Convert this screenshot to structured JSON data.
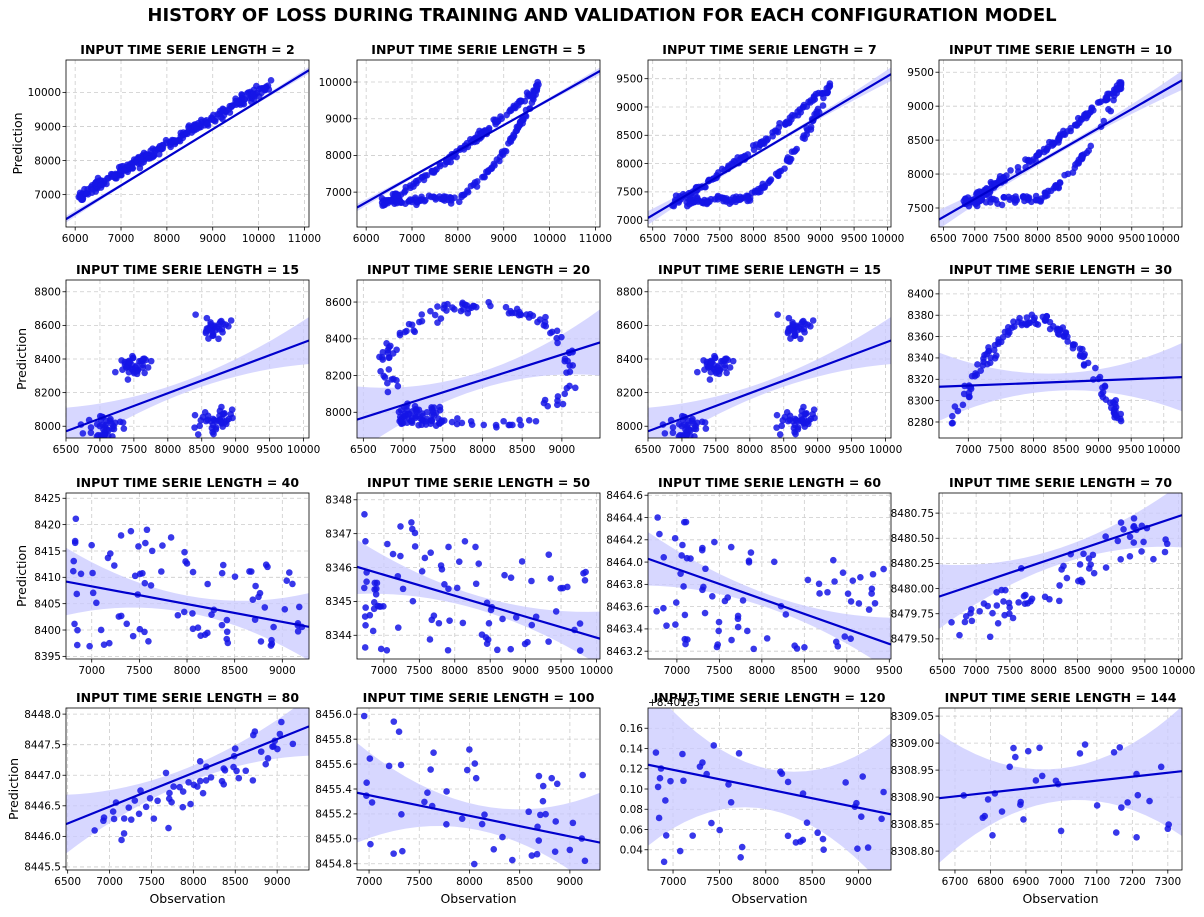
{
  "figure": {
    "title": "HISTORY OF LOSS DURING TRAINING AND VALIDATION FOR EACH CONFIGURATION MODEL"
  },
  "colors": {
    "points": "#1515e6",
    "line": "#0000cc",
    "band": "#c9c9ff",
    "grid": "#cccccc"
  },
  "chart_data": [
    {
      "type": "scatter",
      "title": "INPUT TIME SERIE LENGTH = 2",
      "xlabel": "",
      "ylabel": "Prediction",
      "xlim": [
        5800,
        11100
      ],
      "ylim": [
        6050,
        10950
      ],
      "xticks": [
        "6000",
        "7000",
        "8000",
        "9000",
        "10000",
        "11000"
      ],
      "yticks": [
        "7000",
        "8000",
        "9000",
        "10000"
      ],
      "xtickvals": [
        6000,
        7000,
        8000,
        9000,
        10000,
        11000
      ],
      "ytickvals": [
        7000,
        8000,
        9000,
        10000
      ],
      "fit": {
        "x": [
          5800,
          11100
        ],
        "y": [
          6280,
          10650
        ]
      },
      "band": 25,
      "seed": 11,
      "points_shape": "linear",
      "n": 260
    },
    {
      "type": "scatter",
      "title": "INPUT TIME SERIE LENGTH = 5",
      "xlabel": "",
      "ylabel": "",
      "xlim": [
        5800,
        11100
      ],
      "ylim": [
        6050,
        10600
      ],
      "xticks": [
        "6000",
        "7000",
        "8000",
        "9000",
        "10000",
        "11000"
      ],
      "yticks": [
        "7000",
        "8000",
        "9000",
        "10000"
      ],
      "xtickvals": [
        6000,
        7000,
        8000,
        9000,
        10000,
        11000
      ],
      "ytickvals": [
        7000,
        8000,
        9000,
        10000
      ],
      "fit": {
        "x": [
          5800,
          11100
        ],
        "y": [
          6580,
          10300
        ]
      },
      "band": 25,
      "seed": 12,
      "points_shape": "loop",
      "n": 260
    },
    {
      "type": "scatter",
      "title": "INPUT TIME SERIE LENGTH = 7",
      "xlabel": "",
      "ylabel": "",
      "xlim": [
        6430,
        10050
      ],
      "ylim": [
        6880,
        9830
      ],
      "xticks": [
        "6500",
        "7000",
        "7500",
        "8000",
        "8500",
        "9000",
        "9500",
        "10000"
      ],
      "yticks": [
        "7000",
        "7500",
        "8000",
        "8500",
        "9000",
        "9500"
      ],
      "xtickvals": [
        6500,
        7000,
        7500,
        8000,
        8500,
        9000,
        9500,
        10000
      ],
      "ytickvals": [
        7000,
        7500,
        8000,
        8500,
        9000,
        9500
      ],
      "fit": {
        "x": [
          6430,
          10050
        ],
        "y": [
          7040,
          9580
        ]
      },
      "band": 30,
      "seed": 13,
      "points_shape": "loop",
      "n": 240
    },
    {
      "type": "scatter",
      "title": "INPUT TIME SERIE LENGTH = 10",
      "xlabel": "",
      "ylabel": "",
      "xlim": [
        6430,
        10300
      ],
      "ylim": [
        7220,
        9680
      ],
      "xticks": [
        "6500",
        "7000",
        "7500",
        "8000",
        "8500",
        "9000",
        "9500",
        "10000"
      ],
      "yticks": [
        "7500",
        "8000",
        "8500",
        "9000",
        "9500"
      ],
      "xtickvals": [
        6500,
        7000,
        7500,
        8000,
        8500,
        9000,
        9500,
        10000
      ],
      "ytickvals": [
        7500,
        8000,
        8500,
        9000,
        9500
      ],
      "fit": {
        "x": [
          6430,
          10300
        ],
        "y": [
          7330,
          9380
        ]
      },
      "band": 35,
      "seed": 14,
      "points_shape": "loop",
      "n": 240
    },
    {
      "type": "scatter",
      "title": "INPUT TIME SERIE LENGTH = 15",
      "xlabel": "",
      "ylabel": "Prediction",
      "xlim": [
        6500,
        10080
      ],
      "ylim": [
        7930,
        8870
      ],
      "xticks": [
        "6500",
        "7000",
        "7500",
        "8000",
        "8500",
        "9000",
        "9500",
        "10000"
      ],
      "yticks": [
        "8000",
        "8200",
        "8400",
        "8600",
        "8800"
      ],
      "xtickvals": [
        6500,
        7000,
        7500,
        8000,
        8500,
        9000,
        9500,
        10000
      ],
      "ytickvals": [
        8000,
        8200,
        8400,
        8600,
        8800
      ],
      "fit": {
        "x": [
          6500,
          10080
        ],
        "y": [
          7970,
          8510
        ]
      },
      "band": 35,
      "seed": 21,
      "points_shape": "clusters",
      "n": 150
    },
    {
      "type": "scatter",
      "title": "INPUT TIME SERIE LENGTH = 20",
      "xlabel": "",
      "ylabel": "",
      "xlim": [
        6420,
        9480
      ],
      "ylim": [
        7860,
        8720
      ],
      "xticks": [
        "6500",
        "7000",
        "7500",
        "8000",
        "8500",
        "9000"
      ],
      "yticks": [
        "8000",
        "8200",
        "8400",
        "8600"
      ],
      "xtickvals": [
        6500,
        7000,
        7500,
        8000,
        8500,
        9000
      ],
      "ytickvals": [
        8000,
        8200,
        8400,
        8600
      ],
      "fit": {
        "x": [
          6420,
          9480
        ],
        "y": [
          7960,
          8380
        ]
      },
      "band": 45,
      "seed": 22,
      "points_shape": "ring",
      "n": 190
    },
    {
      "type": "scatter",
      "title": "INPUT TIME SERIE LENGTH = 15",
      "xlabel": "",
      "ylabel": "",
      "xlim": [
        6500,
        10080
      ],
      "ylim": [
        7930,
        8870
      ],
      "xticks": [
        "6500",
        "7000",
        "7500",
        "8000",
        "8500",
        "9000",
        "9500",
        "10000"
      ],
      "yticks": [
        "8000",
        "8200",
        "8400",
        "8600",
        "8800"
      ],
      "xtickvals": [
        6500,
        7000,
        7500,
        8000,
        8500,
        9000,
        9500,
        10000
      ],
      "ytickvals": [
        8000,
        8200,
        8400,
        8600,
        8800
      ],
      "fit": {
        "x": [
          6500,
          10080
        ],
        "y": [
          7970,
          8510
        ]
      },
      "band": 35,
      "seed": 21,
      "points_shape": "clusters",
      "n": 150
    },
    {
      "type": "scatter",
      "title": "INPUT TIME SERIE LENGTH = 30",
      "xlabel": "",
      "ylabel": "",
      "xlim": [
        6550,
        10280
      ],
      "ylim": [
        8265,
        8413
      ],
      "xticks": [
        "7000",
        "7500",
        "8000",
        "8500",
        "9000",
        "9500",
        "10000"
      ],
      "yticks": [
        "8280",
        "8300",
        "8320",
        "8340",
        "8360",
        "8380",
        "8400"
      ],
      "xtickvals": [
        7000,
        7500,
        8000,
        8500,
        9000,
        9500,
        10000
      ],
      "ytickvals": [
        8280,
        8300,
        8320,
        8340,
        8360,
        8380,
        8400
      ],
      "fit": {
        "x": [
          6550,
          10280
        ],
        "y": [
          8313,
          8322
        ]
      },
      "band": 8,
      "seed": 24,
      "points_shape": "arch",
      "n": 130
    },
    {
      "type": "scatter",
      "title": "INPUT TIME SERIE LENGTH = 40",
      "xlabel": "",
      "ylabel": "Prediction",
      "xlim": [
        6730,
        9280
      ],
      "ylim": [
        8394.5,
        8426
      ],
      "xticks": [
        "7000",
        "7500",
        "8000",
        "8500",
        "9000"
      ],
      "yticks": [
        "8395",
        "8400",
        "8405",
        "8410",
        "8415",
        "8420",
        "8425"
      ],
      "xtickvals": [
        7000,
        7500,
        8000,
        8500,
        9000
      ],
      "ytickvals": [
        8395,
        8400,
        8405,
        8410,
        8415,
        8420,
        8425
      ],
      "fit": {
        "x": [
          6730,
          9280
        ],
        "y": [
          8409.2,
          8400.6
        ]
      },
      "band": 1.6,
      "seed": 31,
      "points_shape": "scatter_hi",
      "n": 90
    },
    {
      "type": "scatter",
      "title": "INPUT TIME SERIE LENGTH = 50",
      "xlabel": "",
      "ylabel": "",
      "xlim": [
        6620,
        10050
      ],
      "ylim": [
        8343.3,
        8348.2
      ],
      "xticks": [
        "7000",
        "7500",
        "8000",
        "8500",
        "9000",
        "9500",
        "10000"
      ],
      "yticks": [
        "8344",
        "8345",
        "8346",
        "8347",
        "8348"
      ],
      "xtickvals": [
        7000,
        7500,
        8000,
        8500,
        9000,
        9500,
        10000
      ],
      "ytickvals": [
        8344,
        8345,
        8346,
        8347,
        8348
      ],
      "fit": {
        "x": [
          6620,
          10050
        ],
        "y": [
          8346.02,
          8343.9
        ]
      },
      "band": 0.2,
      "seed": 32,
      "points_shape": "scatter_hi",
      "n": 90
    },
    {
      "type": "scatter",
      "title": "INPUT TIME SERIE LENGTH = 60",
      "xlabel": "",
      "ylabel": "",
      "xlim": [
        6660,
        9520
      ],
      "ylim": [
        8463.13,
        8464.62
      ],
      "xticks": [
        "7000",
        "7500",
        "8000",
        "8500",
        "9000",
        "9500"
      ],
      "yticks": [
        "8463.2",
        "8463.4",
        "8463.6",
        "8463.8",
        "8464.0",
        "8464.2",
        "8464.4",
        "8464.6"
      ],
      "xtickvals": [
        7000,
        7500,
        8000,
        8500,
        9000,
        9500
      ],
      "ytickvals": [
        8463.2,
        8463.4,
        8463.6,
        8463.8,
        8464.0,
        8464.2,
        8464.4,
        8464.6
      ],
      "fit": {
        "x": [
          6660,
          9520
        ],
        "y": [
          8464.03,
          8463.26
        ]
      },
      "band": 0.06,
      "seed": 33,
      "points_shape": "scatter_hi",
      "n": 75
    },
    {
      "type": "scatter",
      "title": "INPUT TIME SERIE LENGTH = 70",
      "xlabel": "",
      "ylabel": "",
      "xlim": [
        6450,
        10050
      ],
      "ylim": [
        8479.3,
        8480.95
      ],
      "xticks": [
        "6500",
        "7000",
        "7500",
        "8000",
        "8500",
        "9000",
        "9500",
        "10000"
      ],
      "yticks": [
        "8479.50",
        "8479.75",
        "8480.00",
        "8480.25",
        "8480.50",
        "8480.75"
      ],
      "xtickvals": [
        6500,
        7000,
        7500,
        8000,
        8500,
        9000,
        9500,
        10000
      ],
      "ytickvals": [
        8479.5,
        8479.75,
        8480.0,
        8480.25,
        8480.5,
        8480.75
      ],
      "fit": {
        "x": [
          6450,
          10050
        ],
        "y": [
          8479.92,
          8480.73
        ]
      },
      "band": 0.08,
      "seed": 34,
      "points_shape": "rising",
      "n": 70
    },
    {
      "type": "scatter",
      "title": "INPUT TIME SERIE LENGTH = 80",
      "xlabel": "Observation",
      "ylabel": "Prediction",
      "xlim": [
        6480,
        9380
      ],
      "ylim": [
        8445.45,
        8448.1
      ],
      "xticks": [
        "6500",
        "7000",
        "7500",
        "8000",
        "8500",
        "9000"
      ],
      "yticks": [
        "8445.5",
        "8446.0",
        "8446.5",
        "8447.0",
        "8447.5",
        "8448.0"
      ],
      "xtickvals": [
        6500,
        7000,
        7500,
        8000,
        8500,
        9000
      ],
      "ytickvals": [
        8445.5,
        8446.0,
        8446.5,
        8447.0,
        8447.5,
        8448.0
      ],
      "fit": {
        "x": [
          6480,
          9380
        ],
        "y": [
          8446.2,
          8447.8
        ]
      },
      "band": 0.12,
      "seed": 41,
      "points_shape": "rising",
      "n": 60
    },
    {
      "type": "scatter",
      "title": "INPUT TIME SERIE LENGTH = 100",
      "xlabel": "Observation",
      "ylabel": "",
      "xlim": [
        6880,
        9300
      ],
      "ylim": [
        8454.75,
        8456.05
      ],
      "xticks": [
        "7000",
        "7500",
        "8000",
        "8500",
        "9000"
      ],
      "yticks": [
        "8454.8",
        "8455.0",
        "8455.2",
        "8455.4",
        "8455.6",
        "8455.8",
        "8456.0"
      ],
      "xtickvals": [
        7000,
        7500,
        8000,
        8500,
        9000
      ],
      "ytickvals": [
        8454.8,
        8455.0,
        8455.2,
        8455.4,
        8455.6,
        8455.8,
        8456.0
      ],
      "fit": {
        "x": [
          6880,
          9300
        ],
        "y": [
          8455.37,
          8454.97
        ]
      },
      "band": 0.1,
      "seed": 42,
      "points_shape": "scatter_lo",
      "n": 50
    },
    {
      "type": "scatter",
      "title": "INPUT TIME SERIE LENGTH = 120",
      "xlabel": "Observation",
      "ylabel": "",
      "offset_text": "+8.401e3",
      "xlim": [
        6730,
        9350
      ],
      "ylim": [
        0.02,
        0.18
      ],
      "xticks": [
        "7000",
        "7500",
        "8000",
        "8500",
        "9000"
      ],
      "yticks": [
        "0.04",
        "0.06",
        "0.08",
        "0.10",
        "0.12",
        "0.14",
        "0.16"
      ],
      "xtickvals": [
        7000,
        7500,
        8000,
        8500,
        9000
      ],
      "ytickvals": [
        0.04,
        0.06,
        0.08,
        0.1,
        0.12,
        0.14,
        0.16
      ],
      "fit": {
        "x": [
          6730,
          9350
        ],
        "y": [
          0.124,
          0.075
        ]
      },
      "band": 0.02,
      "seed": 43,
      "points_shape": "scatter_hi",
      "n": 45
    },
    {
      "type": "scatter",
      "title": "INPUT TIME SERIE LENGTH = 144",
      "xlabel": "Observation",
      "ylabel": "",
      "xlim": [
        6655,
        7340
      ],
      "ylim": [
        8308.765,
        8309.065
      ],
      "xticks": [
        "6700",
        "6800",
        "6900",
        "7000",
        "7100",
        "7200",
        "7300"
      ],
      "yticks": [
        "8308.80",
        "8308.85",
        "8308.90",
        "8308.95",
        "8309.00",
        "8309.05"
      ],
      "xtickvals": [
        6700,
        6800,
        6900,
        7000,
        7100,
        7200,
        7300
      ],
      "ytickvals": [
        8308.8,
        8308.85,
        8308.9,
        8308.95,
        8309.0,
        8309.05
      ],
      "fit": {
        "x": [
          6655,
          7340
        ],
        "y": [
          8308.898,
          8308.948
        ]
      },
      "band": 0.03,
      "seed": 44,
      "points_shape": "scatter_mid",
      "n": 35
    }
  ]
}
